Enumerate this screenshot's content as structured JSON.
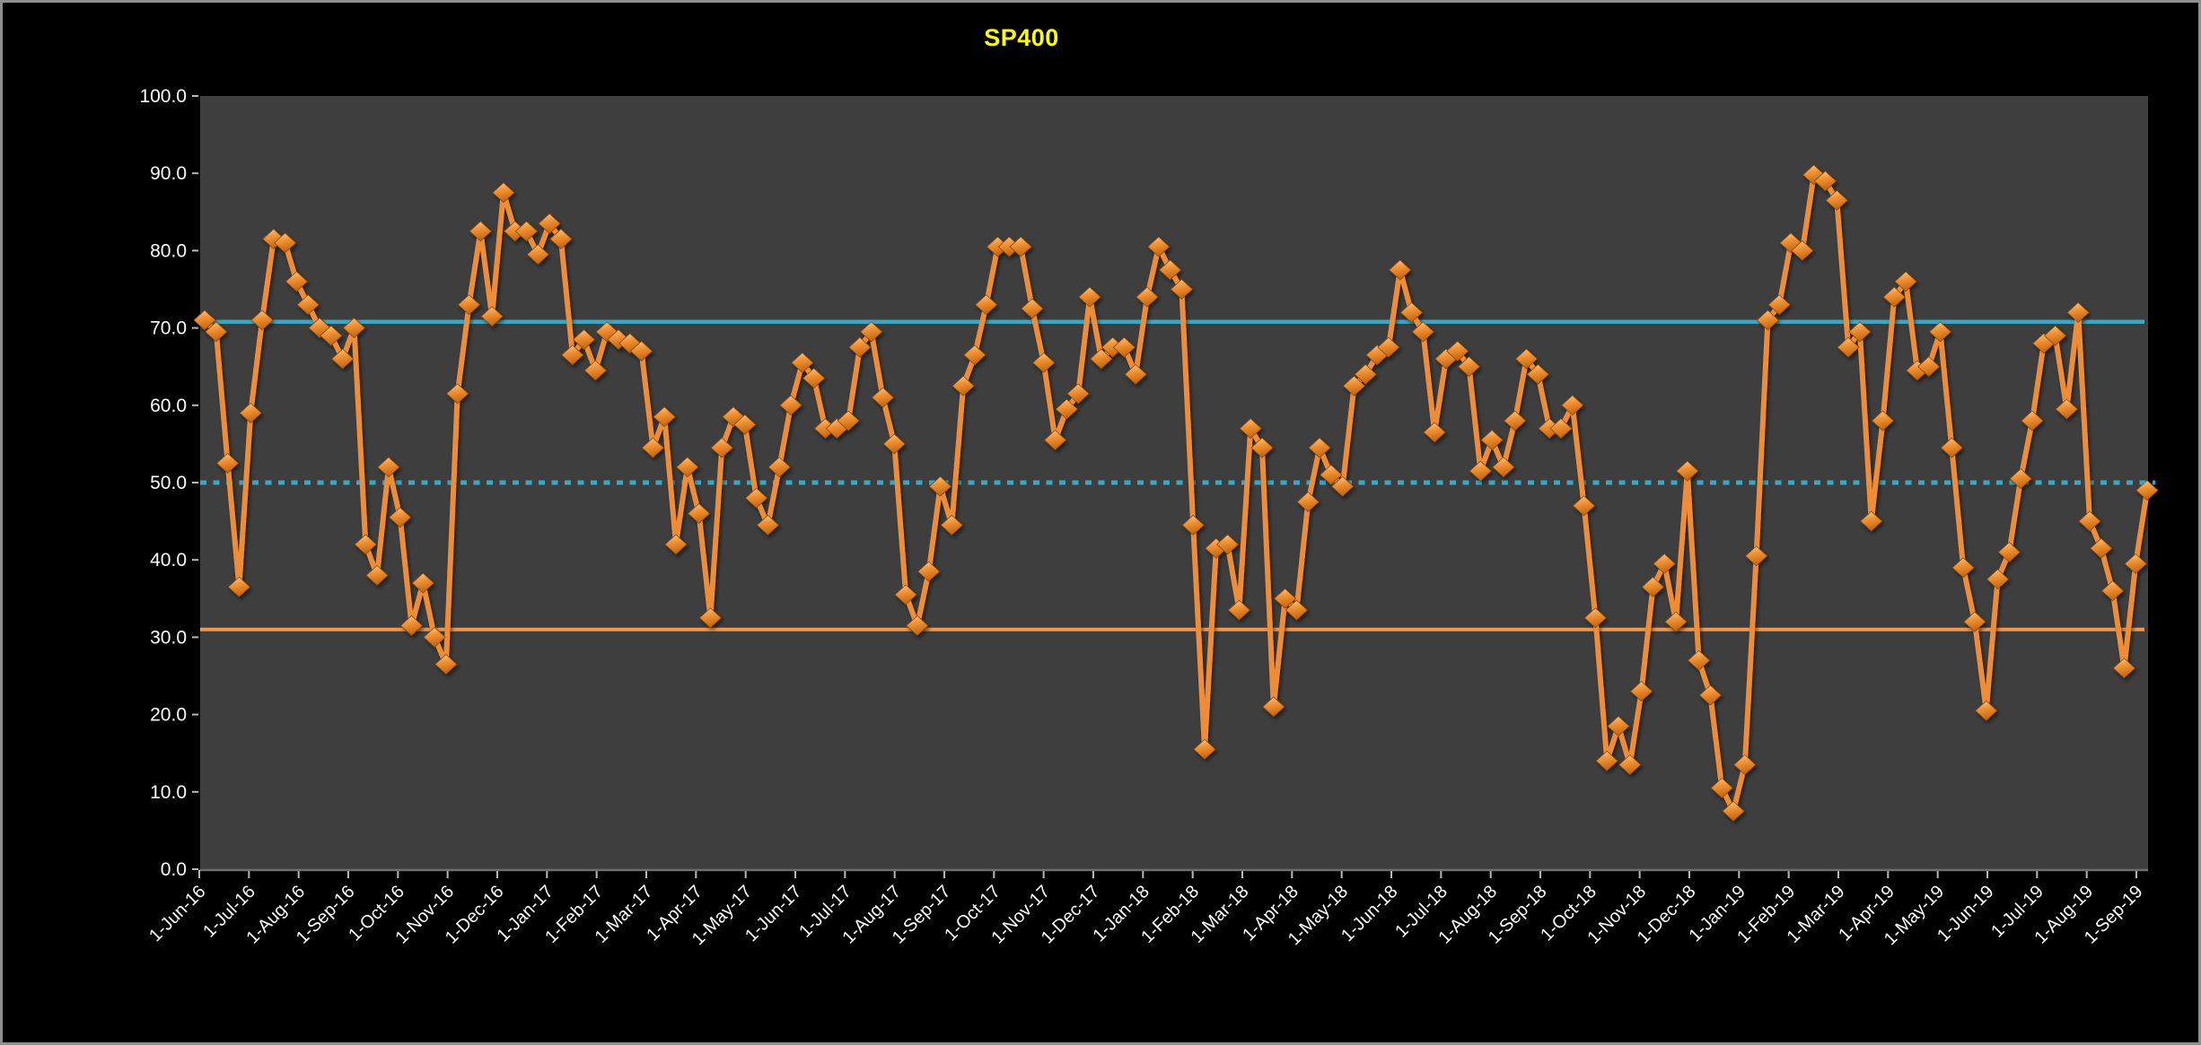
{
  "window": {
    "background": "#000000",
    "frame_border": "#8E8E8E"
  },
  "chart_data": {
    "type": "line",
    "title": "SP400",
    "title_color": "#FFFF00",
    "plot_bg": "#3E3E3E",
    "label_color": "#FFFFFF",
    "tick_color": "#B9B9B9",
    "axis_line_color": "#6F6F6F",
    "grid": "none",
    "legend": "none",
    "ylim": [
      0,
      100
    ],
    "y_tick_values": [
      0,
      10,
      20,
      30,
      40,
      50,
      60,
      70,
      80,
      90,
      100
    ],
    "y_tick_labels": [
      "0.0",
      "10.0",
      "20.0",
      "30.0",
      "40.0",
      "50.0",
      "60.0",
      "70.0",
      "80.0",
      "90.0",
      "100.0"
    ],
    "x_tick_labels": [
      "1-Jun-16",
      "1-Jul-16",
      "1-Aug-16",
      "1-Sep-16",
      "1-Oct-16",
      "1-Nov-16",
      "1-Dec-16",
      "1-Jan-17",
      "1-Feb-17",
      "1-Mar-17",
      "1-Apr-17",
      "1-May-17",
      "1-Jun-17",
      "1-Jul-17",
      "1-Aug-17",
      "1-Sep-17",
      "1-Oct-17",
      "1-Nov-17",
      "1-Dec-17",
      "1-Jan-18",
      "1-Feb-18",
      "1-Mar-18",
      "1-Apr-18",
      "1-May-18",
      "1-Jun-18",
      "1-Jul-18",
      "1-Aug-18",
      "1-Sep-18",
      "1-Oct-18",
      "1-Nov-18",
      "1-Dec-18",
      "1-Jan-19",
      "1-Feb-19",
      "1-Mar-19",
      "1-Apr-19",
      "1-May-19",
      "1-Jun-19",
      "1-Jul-19",
      "1-Aug-19",
      "1-Sep-19"
    ],
    "series": [
      {
        "name": "SP400",
        "interval": "weekly",
        "color": "#EF8C35",
        "marker": "diamond",
        "marker_gradient": [
          "#FFCD93",
          "#F09337",
          "#C8650C"
        ],
        "marker_edge": "#8C4A08",
        "values": [
          71,
          69.5,
          52.5,
          36.5,
          59,
          71,
          81.5,
          81,
          76,
          73,
          70,
          69,
          66,
          70,
          42,
          38,
          52,
          45.5,
          31.5,
          37,
          30,
          26.5,
          61.5,
          73,
          82.5,
          71.5,
          87.5,
          82.5,
          82.5,
          79.5,
          83.5,
          81.5,
          66.5,
          68.5,
          64.5,
          69.5,
          68.5,
          68,
          67,
          54.5,
          58.5,
          42,
          52,
          46,
          32.5,
          54.5,
          58.5,
          57.5,
          48,
          44.5,
          52,
          60,
          65.5,
          63.5,
          57,
          57,
          58,
          67.5,
          69.5,
          61,
          55,
          35.5,
          31.5,
          38.5,
          49.5,
          44.5,
          62.5,
          66.5,
          73,
          80.5,
          80.5,
          80.5,
          72.5,
          65.5,
          55.5,
          59.5,
          61.5,
          74,
          66,
          67.5,
          67.5,
          64,
          74,
          80.5,
          77.5,
          75,
          44.5,
          15.5,
          41.5,
          42,
          33.5,
          57,
          54.5,
          21,
          35,
          33.5,
          47.5,
          54.5,
          51,
          49.5,
          62.5,
          64,
          66.5,
          67.5,
          77.5,
          72,
          69.5,
          56.5,
          66,
          67,
          65,
          51.5,
          55.5,
          52,
          58,
          66,
          64,
          57,
          57,
          60,
          47,
          32.5,
          14,
          18.5,
          13.5,
          23,
          36.5,
          39.5,
          32,
          51.5,
          27,
          22.5,
          10.5,
          7.5,
          13.5,
          40.5,
          71,
          73,
          81,
          80,
          89.8,
          89,
          86.5,
          67.5,
          69.5,
          45,
          58,
          74,
          76,
          64.5,
          65,
          69.5,
          54.5,
          39,
          32,
          20.5,
          37.5,
          41,
          50.5,
          58,
          68,
          69,
          59.5,
          72,
          45,
          41.5,
          36,
          26,
          39.5,
          49
        ]
      }
    ],
    "reference_lines": [
      {
        "name": "upper-band",
        "value": 70.8,
        "style": "solid",
        "color": "#3DA6C2",
        "width": 4.5
      },
      {
        "name": "midline",
        "value": 50,
        "style": "dotted",
        "color": "#3DA6C2",
        "width": 5
      },
      {
        "name": "lower-band",
        "value": 31,
        "style": "solid",
        "color": "#F79646",
        "width": 4
      }
    ]
  }
}
